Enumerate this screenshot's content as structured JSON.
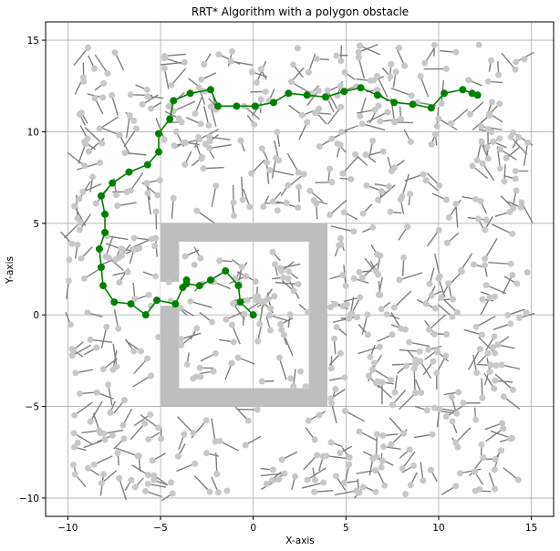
{
  "chart_data": {
    "type": "scatter",
    "title": "RRT* Algorithm with a polygon obstacle",
    "xlabel": "X-axis",
    "ylabel": "Y-axis",
    "xlim": [
      -11.2,
      16.2
    ],
    "ylim": [
      -11.0,
      16.0
    ],
    "xticks": [
      -10,
      -5,
      0,
      5,
      10,
      15
    ],
    "yticks": [
      -10,
      -5,
      0,
      5,
      10,
      15
    ],
    "grid": true,
    "colors": {
      "obstacle": "#bebebe",
      "tree_edge": "#7f7f7f",
      "tree_node": "#c8c8c8",
      "path": "#008000"
    },
    "obstacle": {
      "outer": [
        [
          -5,
          -5
        ],
        [
          4,
          -5
        ],
        [
          4,
          5
        ],
        [
          -5,
          5
        ]
      ],
      "inner": [
        [
          -4,
          -4
        ],
        [
          3,
          -4
        ],
        [
          3,
          4
        ],
        [
          -4,
          4
        ]
      ],
      "gap": [
        [
          -5,
          0.5
        ],
        [
          -4,
          0.5
        ],
        [
          -4,
          1.8
        ],
        [
          -5,
          1.8
        ]
      ]
    },
    "path": {
      "name": "path",
      "points": [
        [
          0,
          0
        ],
        [
          -0.7,
          0.7
        ],
        [
          -0.8,
          1.6
        ],
        [
          -1.5,
          2.4
        ],
        [
          -2.3,
          1.9
        ],
        [
          -2.9,
          1.6
        ],
        [
          -3.6,
          1.7
        ],
        [
          -3.8,
          1.5
        ],
        [
          -3.6,
          1.9
        ],
        [
          -4.2,
          0.6
        ],
        [
          -5.2,
          0.8
        ],
        [
          -5.8,
          0.0
        ],
        [
          -6.6,
          0.6
        ],
        [
          -7.5,
          0.7
        ],
        [
          -8.1,
          1.6
        ],
        [
          -8.2,
          2.6
        ],
        [
          -8.3,
          3.6
        ],
        [
          -8.0,
          4.5
        ],
        [
          -8.0,
          5.5
        ],
        [
          -8.2,
          6.5
        ],
        [
          -7.6,
          7.2
        ],
        [
          -6.7,
          7.8
        ],
        [
          -5.7,
          8.2
        ],
        [
          -5.1,
          8.9
        ],
        [
          -5.1,
          9.9
        ],
        [
          -4.5,
          10.7
        ],
        [
          -4.3,
          11.7
        ],
        [
          -3.4,
          12.1
        ],
        [
          -2.3,
          12.3
        ],
        [
          -1.9,
          11.4
        ],
        [
          -0.9,
          11.4
        ],
        [
          0.1,
          11.4
        ],
        [
          1.1,
          11.6
        ],
        [
          1.9,
          12.1
        ],
        [
          2.9,
          12.0
        ],
        [
          3.9,
          11.9
        ],
        [
          4.9,
          12.2
        ],
        [
          5.8,
          12.4
        ],
        [
          6.7,
          12.0
        ],
        [
          7.6,
          11.6
        ],
        [
          8.6,
          11.5
        ],
        [
          9.6,
          11.3
        ],
        [
          10.3,
          12.1
        ],
        [
          11.3,
          12.3
        ],
        [
          11.8,
          12.1
        ],
        [
          12.1,
          12.0
        ]
      ]
    }
  }
}
